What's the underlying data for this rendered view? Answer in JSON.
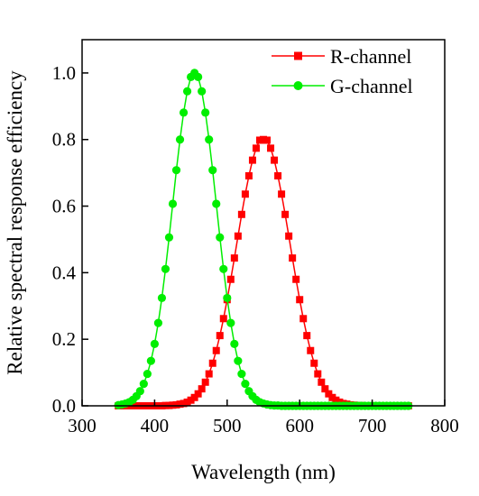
{
  "chart_data": {
    "type": "line",
    "xlabel": "Wavelength (nm)",
    "ylabel": "Relative spectral response efficiency",
    "xlim": [
      300,
      800
    ],
    "ylim": [
      0,
      1.1
    ],
    "xticks": [
      300,
      400,
      500,
      600,
      700,
      800
    ],
    "yticks": [
      0.0,
      0.2,
      0.4,
      0.6,
      0.8,
      1.0
    ],
    "xtick_labels": [
      "300",
      "400",
      "500",
      "600",
      "700",
      "800"
    ],
    "ytick_labels": [
      "0.0",
      "0.2",
      "0.4",
      "0.6",
      "0.8",
      "1.0"
    ],
    "grid": false,
    "legend_position": "top-right",
    "x": [
      350,
      355,
      360,
      365,
      370,
      375,
      380,
      385,
      390,
      395,
      400,
      405,
      410,
      415,
      420,
      425,
      430,
      435,
      440,
      445,
      450,
      455,
      460,
      465,
      470,
      475,
      480,
      485,
      490,
      495,
      500,
      505,
      510,
      515,
      520,
      525,
      530,
      535,
      540,
      545,
      550,
      555,
      560,
      565,
      570,
      575,
      580,
      585,
      590,
      595,
      600,
      605,
      610,
      615,
      620,
      625,
      630,
      635,
      640,
      645,
      650,
      655,
      660,
      665,
      670,
      675,
      680,
      685,
      690,
      695,
      700,
      705,
      710,
      715,
      720,
      725,
      730,
      735,
      740,
      745,
      750
    ],
    "series": [
      {
        "name": "R-channel",
        "color": "#ff0000",
        "marker": "square",
        "values": [
          0.0,
          0.0,
          0.0,
          0.0,
          0.0,
          0.0,
          0.0,
          0.0,
          0.0,
          0.0,
          0.0,
          0.0,
          0.0,
          0.001,
          0.001,
          0.002,
          0.003,
          0.005,
          0.007,
          0.011,
          0.017,
          0.025,
          0.036,
          0.051,
          0.071,
          0.096,
          0.128,
          0.166,
          0.211,
          0.262,
          0.319,
          0.38,
          0.444,
          0.51,
          0.575,
          0.636,
          0.691,
          0.738,
          0.774,
          0.798,
          0.8,
          0.798,
          0.774,
          0.738,
          0.691,
          0.636,
          0.575,
          0.51,
          0.444,
          0.38,
          0.319,
          0.262,
          0.211,
          0.166,
          0.128,
          0.096,
          0.071,
          0.051,
          0.036,
          0.025,
          0.017,
          0.011,
          0.007,
          0.005,
          0.003,
          0.002,
          0.001,
          0.001,
          0.0,
          0.0,
          0.0,
          0.0,
          0.0,
          0.0,
          0.0,
          0.0,
          0.0,
          0.0,
          0.0,
          0.0,
          0.0
        ]
      },
      {
        "name": "G-channel",
        "color": "#00ee00",
        "marker": "circle",
        "values": [
          0.002,
          0.004,
          0.007,
          0.011,
          0.018,
          0.029,
          0.044,
          0.066,
          0.096,
          0.135,
          0.186,
          0.249,
          0.324,
          0.411,
          0.506,
          0.607,
          0.708,
          0.8,
          0.881,
          0.945,
          0.988,
          1.0,
          0.988,
          0.945,
          0.881,
          0.8,
          0.708,
          0.607,
          0.506,
          0.411,
          0.324,
          0.249,
          0.186,
          0.135,
          0.096,
          0.066,
          0.044,
          0.029,
          0.018,
          0.011,
          0.007,
          0.004,
          0.002,
          0.001,
          0.001,
          0.0,
          0.0,
          0.0,
          0.0,
          0.0,
          0.0,
          0.0,
          0.0,
          0.0,
          0.0,
          0.0,
          0.0,
          0.0,
          0.0,
          0.0,
          0.0,
          0.0,
          0.0,
          0.0,
          0.0,
          0.0,
          0.0,
          0.0,
          0.0,
          0.0,
          0.0,
          0.0,
          0.0,
          0.0,
          0.0,
          0.0,
          0.0,
          0.0,
          0.0,
          0.0,
          0.0
        ]
      }
    ]
  }
}
